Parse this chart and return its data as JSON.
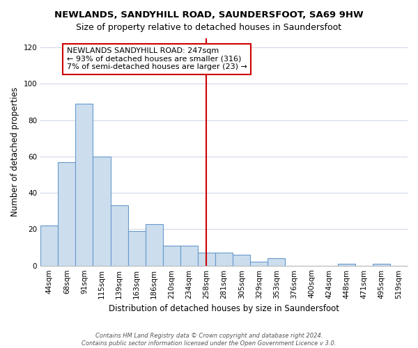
{
  "title": "NEWLANDS, SANDYHILL ROAD, SAUNDERSFOOT, SA69 9HW",
  "subtitle": "Size of property relative to detached houses in Saundersfoot",
  "xlabel": "Distribution of detached houses by size in Saundersfoot",
  "ylabel": "Number of detached properties",
  "bin_labels": [
    "44sqm",
    "68sqm",
    "91sqm",
    "115sqm",
    "139sqm",
    "163sqm",
    "186sqm",
    "210sqm",
    "234sqm",
    "258sqm",
    "281sqm",
    "305sqm",
    "329sqm",
    "353sqm",
    "376sqm",
    "400sqm",
    "424sqm",
    "448sqm",
    "471sqm",
    "495sqm",
    "519sqm"
  ],
  "bar_heights": [
    22,
    57,
    89,
    60,
    33,
    19,
    23,
    11,
    11,
    7,
    7,
    6,
    2,
    4,
    0,
    0,
    0,
    1,
    0,
    1,
    0
  ],
  "bar_color": "#ccdded",
  "bar_edge_color": "#6699cc",
  "vline_x_index": 9,
  "vline_color": "#cc0000",
  "annotation_title": "NEWLANDS SANDYHILL ROAD: 247sqm",
  "annotation_line1": "← 93% of detached houses are smaller (316)",
  "annotation_line2": "7% of semi-detached houses are larger (23) →",
  "annotation_box_facecolor": "#ffffff",
  "annotation_box_edgecolor": "#cc0000",
  "ylim": [
    0,
    125
  ],
  "yticks": [
    0,
    20,
    40,
    60,
    80,
    100,
    120
  ],
  "fig_background": "#ffffff",
  "plot_background": "#ffffff",
  "grid_color": "#d0d8e8",
  "footer1": "Contains HM Land Registry data © Crown copyright and database right 2024.",
  "footer2": "Contains public sector information licensed under the Open Government Licence v 3.0.",
  "title_fontsize": 9.5,
  "subtitle_fontsize": 9.0,
  "ylabel_fontsize": 8.5,
  "xlabel_fontsize": 8.5,
  "tick_fontsize": 7.5,
  "annotation_fontsize": 8.0,
  "footer_fontsize": 6.0
}
